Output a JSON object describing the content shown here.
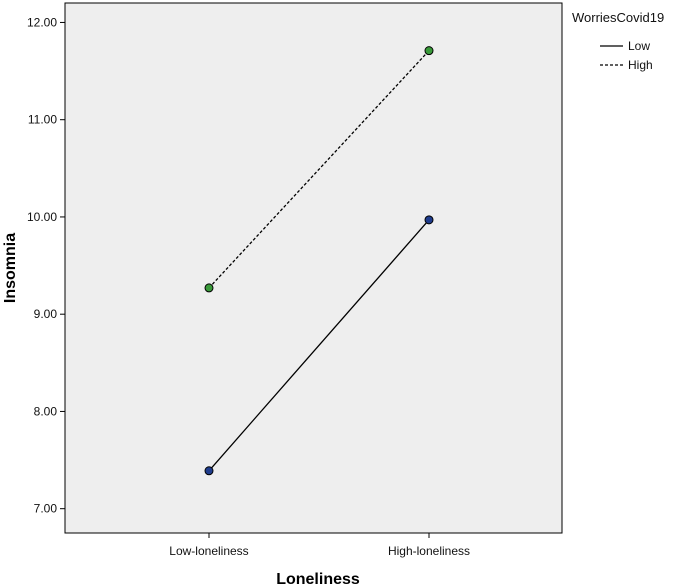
{
  "chart_data": {
    "type": "line",
    "title": "",
    "xlabel": "Loneliness",
    "ylabel": "Insomnia",
    "categories": [
      "Low-loneliness",
      "High-loneliness"
    ],
    "ylim": [
      6.75,
      12.2
    ],
    "yticks": [
      "7.00",
      "8.00",
      "9.00",
      "10.00",
      "11.00",
      "12.00"
    ],
    "grid": false,
    "legend_position": "top-right",
    "legend_title": "WorriesCovid19",
    "plot_background": "#eeeeee",
    "series": [
      {
        "name": "Low",
        "values": [
          7.39,
          9.97
        ],
        "line_style": "solid",
        "line_color": "#000000",
        "marker_color": "#1f3c8c"
      },
      {
        "name": "High",
        "values": [
          9.27,
          11.71
        ],
        "line_style": "dashed",
        "line_color": "#000000",
        "marker_color": "#3a9a3a"
      }
    ]
  }
}
